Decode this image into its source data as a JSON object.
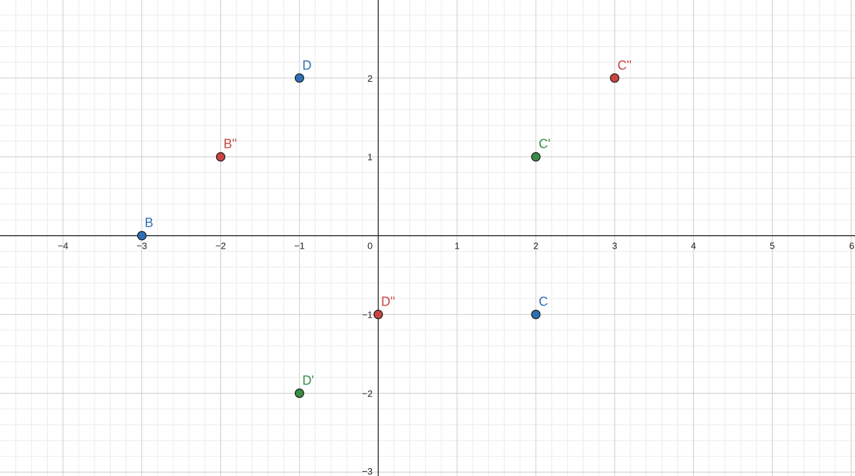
{
  "chart_data": {
    "type": "scatter",
    "title": "",
    "xlabel": "",
    "ylabel": "",
    "xlim": [
      -4.8,
      6.05
    ],
    "ylim": [
      -3.05,
      2.99
    ],
    "grid": true,
    "minor_grid_step": 0.2,
    "major_grid_step": 1,
    "x_ticks": [
      -4,
      -3,
      -2,
      -1,
      0,
      1,
      2,
      3,
      4,
      5,
      6
    ],
    "y_ticks": [
      -3,
      -2,
      -1,
      1,
      2
    ],
    "x_tick_labels": [
      "−4",
      "−3",
      "−2",
      "−1",
      "0",
      "1",
      "2",
      "3",
      "4",
      "5",
      "6"
    ],
    "y_tick_labels": [
      "−3",
      "−2",
      "−1",
      "1",
      "2"
    ],
    "series": [
      {
        "color": "#2d70b3",
        "points": [
          {
            "label": "B",
            "x": -3,
            "y": 0
          },
          {
            "label": "D",
            "x": -1,
            "y": 2
          },
          {
            "label": "C",
            "x": 2,
            "y": -1
          }
        ]
      },
      {
        "color": "#388c46",
        "points": [
          {
            "label": "C'",
            "x": 2,
            "y": 1
          },
          {
            "label": "D'",
            "x": -1,
            "y": -2
          }
        ]
      },
      {
        "color": "#c74440",
        "points": [
          {
            "label": "B''",
            "x": -2,
            "y": 1
          },
          {
            "label": "C''",
            "x": 3,
            "y": 2
          },
          {
            "label": "D''",
            "x": 0,
            "y": -1
          }
        ]
      }
    ]
  }
}
